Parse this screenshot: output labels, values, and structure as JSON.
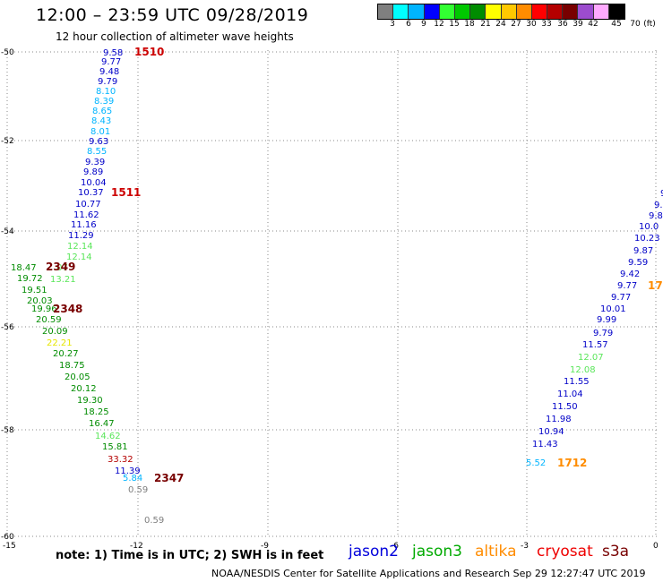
{
  "header": {
    "title": "12:00 – 23:59 UTC 09/28/2019",
    "subtitle": "12 hour collection of altimeter wave heights"
  },
  "legend": {
    "colors": [
      "#7f7f7f",
      "#00ffff",
      "#00b4ff",
      "#0000ff",
      "#32ff32",
      "#00c800",
      "#008c00",
      "#ffff00",
      "#ffc800",
      "#ff8c00",
      "#ff0000",
      "#b40000",
      "#780000",
      "#9c4cce",
      "#ffaaff",
      "#000000"
    ],
    "labels": [
      "3",
      "6",
      "9",
      "12",
      "15",
      "18",
      "21",
      "24",
      "27",
      "30",
      "33",
      "36",
      "39",
      "42",
      "45",
      "70",
      "(ft)"
    ]
  },
  "axes": {
    "x_ticks": [
      "-15",
      "-12",
      "-9",
      "-6",
      "-3",
      "0"
    ],
    "y_ticks": [
      "-50",
      "-52",
      "-54",
      "-56",
      "-58",
      "-60"
    ]
  },
  "observations": [
    {
      "t": "9.58",
      "c": "#0000c8"
    },
    {
      "t": "9.77",
      "c": "#0000c8"
    },
    {
      "t": "9.48",
      "c": "#0000c8"
    },
    {
      "t": "9.79",
      "c": "#0000c8"
    },
    {
      "t": "8.10",
      "c": "#00b4ff"
    },
    {
      "t": "8.39",
      "c": "#00b4ff"
    },
    {
      "t": "8.65",
      "c": "#00b4ff"
    },
    {
      "t": "8.43",
      "c": "#00b4ff"
    },
    {
      "t": "8.01",
      "c": "#00b4ff"
    },
    {
      "t": "9.63",
      "c": "#0000c8"
    },
    {
      "t": "8.55",
      "c": "#00b4ff"
    },
    {
      "t": "9.39",
      "c": "#0000c8"
    },
    {
      "t": "9.89",
      "c": "#0000c8"
    },
    {
      "t": "10.04",
      "c": "#0000c8"
    },
    {
      "t": "10.37",
      "c": "#0000c8"
    },
    {
      "t": "10.77",
      "c": "#0000c8"
    },
    {
      "t": "11.62",
      "c": "#0000c8"
    },
    {
      "t": "11.16",
      "c": "#0000c8"
    },
    {
      "t": "11.29",
      "c": "#0000c8"
    },
    {
      "t": "12.14",
      "c": "#5ae65a"
    },
    {
      "t": "12.14",
      "c": "#5ae65a"
    },
    {
      "t": "18.47",
      "c": "#008c00"
    },
    {
      "t": ".07",
      "c": "#5ae65a"
    },
    {
      "t": "19.72",
      "c": "#008c00"
    },
    {
      "t": "13.21",
      "c": "#5ae65a"
    },
    {
      "t": "19.51",
      "c": "#008c00"
    },
    {
      "t": "20.03",
      "c": "#008c00"
    },
    {
      "t": "19.96",
      "c": "#008c00"
    },
    {
      "t": "20.59",
      "c": "#008c00"
    },
    {
      "t": "20.09",
      "c": "#008c00"
    },
    {
      "t": "22.21",
      "c": "#e6e600"
    },
    {
      "t": "20.27",
      "c": "#008c00"
    },
    {
      "t": "18.75",
      "c": "#008c00"
    },
    {
      "t": "20.05",
      "c": "#008c00"
    },
    {
      "t": "20.12",
      "c": "#008c00"
    },
    {
      "t": "19.30",
      "c": "#008c00"
    },
    {
      "t": "18.25",
      "c": "#008c00"
    },
    {
      "t": "16.47",
      "c": "#008c00"
    },
    {
      "t": "14.62",
      "c": "#5ae65a"
    },
    {
      "t": "15.81",
      "c": "#008c00"
    },
    {
      "t": "33.32",
      "c": "#b40000"
    },
    {
      "t": "11.39",
      "c": "#0000c8"
    },
    {
      "t": "5.84",
      "c": "#00b4ff"
    },
    {
      "t": "0.59",
      "c": "#7f7f7f"
    },
    {
      "t": "0.59",
      "c": "#7f7f7f"
    },
    {
      "t": "9",
      "c": "#0000c8"
    },
    {
      "t": "9.",
      "c": "#0000c8"
    },
    {
      "t": "9.8",
      "c": "#0000c8"
    },
    {
      "t": "10.0",
      "c": "#0000c8"
    },
    {
      "t": "10.23",
      "c": "#0000c8"
    },
    {
      "t": "9.87",
      "c": "#0000c8"
    },
    {
      "t": "9.59",
      "c": "#0000c8"
    },
    {
      "t": "9.42",
      "c": "#0000c8"
    },
    {
      "t": "9.77",
      "c": "#0000c8"
    },
    {
      "t": "9.77",
      "c": "#0000c8"
    },
    {
      "t": "10.01",
      "c": "#0000c8"
    },
    {
      "t": "9.99",
      "c": "#0000c8"
    },
    {
      "t": "9.79",
      "c": "#0000c8"
    },
    {
      "t": "11.57",
      "c": "#0000c8"
    },
    {
      "t": "12.07",
      "c": "#5ae65a"
    },
    {
      "t": "12.08",
      "c": "#5ae65a"
    },
    {
      "t": "11.55",
      "c": "#0000c8"
    },
    {
      "t": "11.04",
      "c": "#0000c8"
    },
    {
      "t": "11.50",
      "c": "#0000c8"
    },
    {
      "t": "11.98",
      "c": "#0000c8"
    },
    {
      "t": "10.94",
      "c": "#0000c8"
    },
    {
      "t": "11.43",
      "c": "#0000c8"
    },
    {
      "t": "5.52",
      "c": "#00b4ff"
    }
  ],
  "time_marks": [
    {
      "t": "1510",
      "c": "#cc0000"
    },
    {
      "t": "1511",
      "c": "#cc0000"
    },
    {
      "t": "2349",
      "c": "#780000"
    },
    {
      "t": "2348",
      "c": "#780000"
    },
    {
      "t": "2347",
      "c": "#780000"
    },
    {
      "t": "1712",
      "c": "#ff8c00"
    },
    {
      "t": "17",
      "c": "#ff8c00"
    }
  ],
  "footer": {
    "note": "note:  1) Time is in UTC;  2) SWH is in feet",
    "credit": "NOAA/NESDIS Center for Satellite Applications and Research    Sep 29 12:27:47 UTC 2019",
    "satellites": [
      {
        "name": "jason2",
        "color": "#0000dc"
      },
      {
        "name": "jason3",
        "color": "#00aa00"
      },
      {
        "name": "altika",
        "color": "#ff8c00"
      },
      {
        "name": "cryosat",
        "color": "#ee0000"
      },
      {
        "name": "s3a",
        "color": "#780000"
      }
    ]
  }
}
